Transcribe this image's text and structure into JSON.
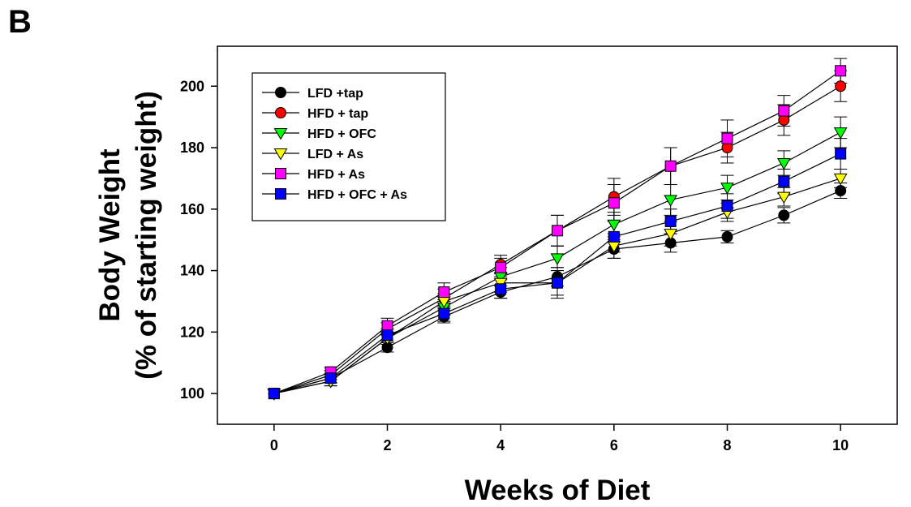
{
  "panel_label": "B",
  "colors": {
    "axis": "#000000",
    "line": "#000000",
    "black": "#000000",
    "red": "#ff0000",
    "green": "#00ff00",
    "yellow": "#ffff00",
    "magenta": "#ff00ff",
    "blue": "#0000ff"
  },
  "chart_data": {
    "type": "line",
    "title": "",
    "xlabel": "Weeks of Diet",
    "ylabel_line1": "Body Weight",
    "ylabel_line2": "(% of starting weight)",
    "xlim": [
      -1,
      11
    ],
    "ylim": [
      90,
      213
    ],
    "xticks": [
      0,
      2,
      4,
      6,
      8,
      10
    ],
    "yticks": [
      100,
      120,
      140,
      160,
      180,
      200
    ],
    "grid": false,
    "legend_position": "top-left",
    "x": [
      0,
      1,
      2,
      3,
      4,
      5,
      6,
      7,
      8,
      9,
      10
    ],
    "series": [
      {
        "name": "LFD +tap",
        "marker": "circle",
        "color": "#000000",
        "values": [
          100,
          105,
          115,
          125,
          133,
          138,
          147,
          149,
          151,
          158,
          166
        ],
        "errors": [
          0,
          1.5,
          1.5,
          2,
          2,
          3,
          3,
          3,
          2,
          2.5,
          2.5
        ]
      },
      {
        "name": "HFD + tap",
        "marker": "circle",
        "color": "#ff0000",
        "values": [
          100,
          106,
          121,
          131,
          142,
          153,
          164,
          174,
          180,
          189,
          200
        ],
        "errors": [
          0,
          1.5,
          2,
          3,
          3,
          5,
          6,
          6,
          5,
          5,
          5
        ]
      },
      {
        "name": "HFD + OFC",
        "marker": "triangle-down",
        "color": "#00ff00",
        "values": [
          100,
          104,
          118,
          128,
          138,
          144,
          155,
          163,
          167,
          175,
          185
        ],
        "errors": [
          0,
          1.5,
          2,
          2.5,
          3,
          4,
          4,
          5,
          4,
          4,
          5
        ]
      },
      {
        "name": "LFD + As",
        "marker": "triangle-down",
        "color": "#ffff00",
        "values": [
          100,
          104,
          118,
          130,
          136,
          136,
          148,
          152,
          159,
          164,
          170
        ],
        "errors": [
          0,
          1.5,
          2,
          2.5,
          3,
          4,
          4,
          4,
          3,
          3,
          3
        ]
      },
      {
        "name": "HFD + As",
        "marker": "square",
        "color": "#ff00ff",
        "values": [
          100,
          107,
          122,
          133,
          141,
          153,
          162,
          174,
          183,
          192,
          205
        ],
        "errors": [
          0,
          1.5,
          2.5,
          3,
          3,
          5,
          6,
          6,
          6,
          5,
          4
        ]
      },
      {
        "name": "HFD + OFC + As",
        "marker": "square",
        "color": "#0000ff",
        "values": [
          100,
          105,
          119,
          126,
          134,
          136,
          151,
          156,
          161,
          169,
          178
        ],
        "errors": [
          0,
          1.5,
          2,
          2.5,
          3,
          5,
          5,
          4,
          4,
          4,
          5
        ]
      }
    ]
  }
}
